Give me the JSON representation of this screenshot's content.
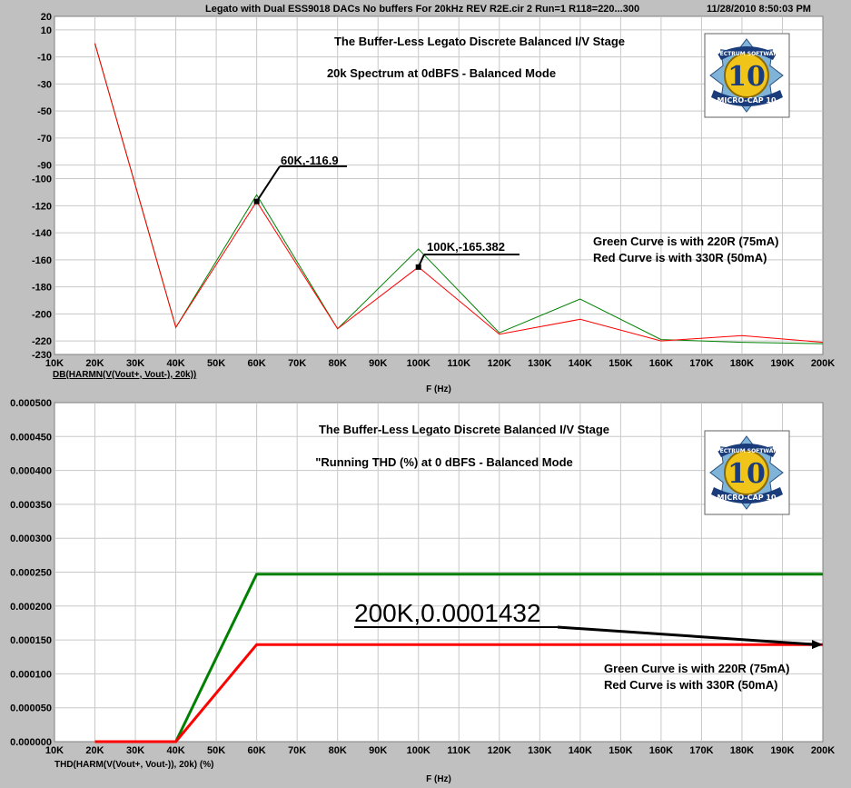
{
  "header": {
    "circuit": "Legato with Dual ESS9018 DACs No buffers For 20kHz REV R2E.cir 2 Run=1 R118=220...300",
    "timestamp": "11/28/2010 8:50:03 PM"
  },
  "logo": {
    "top_text": "SPECTRUM SOFTWARE",
    "number": "10",
    "bottom_text": "MICRO-CAP 10"
  },
  "colors": {
    "background": "#c0c0c0",
    "plot_bg": "#ffffff",
    "grid": "#c8c8c8",
    "green": "#008000",
    "red": "#ff0000",
    "callout": "#000000"
  },
  "chart_data": [
    {
      "type": "line",
      "title": "The Buffer-Less Legato Discrete Balanced I/V Stage",
      "subtitle": "20k Spectrum at 0dBFS - Balanced Mode",
      "xlabel": "F (Hz)",
      "ylabel": "DB(HARMN(V(Vout+, Vout-), 20k))",
      "xlim": [
        10000,
        200000
      ],
      "ylim": [
        -230,
        20
      ],
      "x_ticks": [
        10000,
        20000,
        30000,
        40000,
        50000,
        60000,
        70000,
        80000,
        90000,
        100000,
        110000,
        120000,
        130000,
        140000,
        150000,
        160000,
        170000,
        180000,
        190000,
        200000
      ],
      "x_tick_labels": [
        "10K",
        "20K",
        "30K",
        "40K",
        "50K",
        "60K",
        "70K",
        "80K",
        "90K",
        "100K",
        "110K",
        "120K",
        "130K",
        "140K",
        "150K",
        "160K",
        "170K",
        "180K",
        "190K",
        "200K"
      ],
      "y_ticks": [
        20,
        10,
        -10,
        -30,
        -50,
        -70,
        -90,
        -100,
        -120,
        -140,
        -160,
        -180,
        -200,
        -220,
        -230
      ],
      "y_tick_labels": [
        "20",
        "10",
        "-10",
        "-30",
        "-50",
        "-70",
        "-90",
        "-100",
        "-120",
        "-140",
        "-160",
        "-180",
        "-200",
        "-220",
        "-230"
      ],
      "grid": true,
      "series": [
        {
          "color": "#008000",
          "x": [
            20000,
            40000,
            60000,
            80000,
            100000,
            120000,
            140000,
            160000,
            180000,
            200000
          ],
          "y": [
            0,
            -210,
            -112,
            -211,
            -152,
            -214,
            -189,
            -219,
            -221,
            -222
          ]
        },
        {
          "color": "#ff0000",
          "x": [
            20000,
            40000,
            60000,
            80000,
            100000,
            120000,
            140000,
            160000,
            180000,
            200000
          ],
          "y": [
            0,
            -210,
            -116.9,
            -211,
            -165.382,
            -215,
            -204,
            -220,
            -216,
            -221
          ]
        }
      ],
      "annotations": [
        {
          "text": "60K,-116.9",
          "x": 60000,
          "y": -116.9
        },
        {
          "text": "100K,-165.382",
          "x": 100000,
          "y": -165.382
        }
      ],
      "notes": [
        "Green Curve is with 220R (75mA)",
        "Red Curve is with 330R (50mA)"
      ]
    },
    {
      "type": "line",
      "title": "The Buffer-Less Legato Discrete Balanced I/V Stage",
      "subtitle": "\"Running THD (%) at 0 dBFS - Balanced Mode",
      "xlabel": "F (Hz)",
      "ylabel": "THD(HARM(V(Vout+, Vout-)), 20k) (%)",
      "xlim": [
        10000,
        200000
      ],
      "ylim": [
        0,
        0.0005
      ],
      "x_ticks": [
        10000,
        20000,
        30000,
        40000,
        50000,
        60000,
        70000,
        80000,
        90000,
        100000,
        110000,
        120000,
        130000,
        140000,
        150000,
        160000,
        170000,
        180000,
        190000,
        200000
      ],
      "x_tick_labels": [
        "10K",
        "20K",
        "30K",
        "40K",
        "50K",
        "60K",
        "70K",
        "80K",
        "90K",
        "100K",
        "110K",
        "120K",
        "130K",
        "140K",
        "150K",
        "160K",
        "170K",
        "180K",
        "190K",
        "200K"
      ],
      "y_ticks": [
        0,
        5e-05,
        0.0001,
        0.00015,
        0.0002,
        0.00025,
        0.0003,
        0.00035,
        0.0004,
        0.00045,
        0.0005
      ],
      "y_tick_labels": [
        "0.000000",
        "0.000050",
        "0.000100",
        "0.000150",
        "0.000200",
        "0.000250",
        "0.000300",
        "0.000350",
        "0.000400",
        "0.000450",
        "0.000500"
      ],
      "grid": true,
      "series": [
        {
          "color": "#008000",
          "x": [
            20000,
            40000,
            60000,
            200000
          ],
          "y": [
            0,
            0,
            0.000247,
            0.000247
          ]
        },
        {
          "color": "#ff0000",
          "x": [
            20000,
            40000,
            60000,
            200000
          ],
          "y": [
            0,
            0,
            0.0001432,
            0.0001432
          ]
        }
      ],
      "annotations": [
        {
          "text": "200K,0.0001432",
          "x": 200000,
          "y": 0.0001432
        }
      ],
      "notes": [
        "Green Curve is with 220R (75mA)",
        "Red Curve is with 330R (50mA)"
      ]
    }
  ]
}
